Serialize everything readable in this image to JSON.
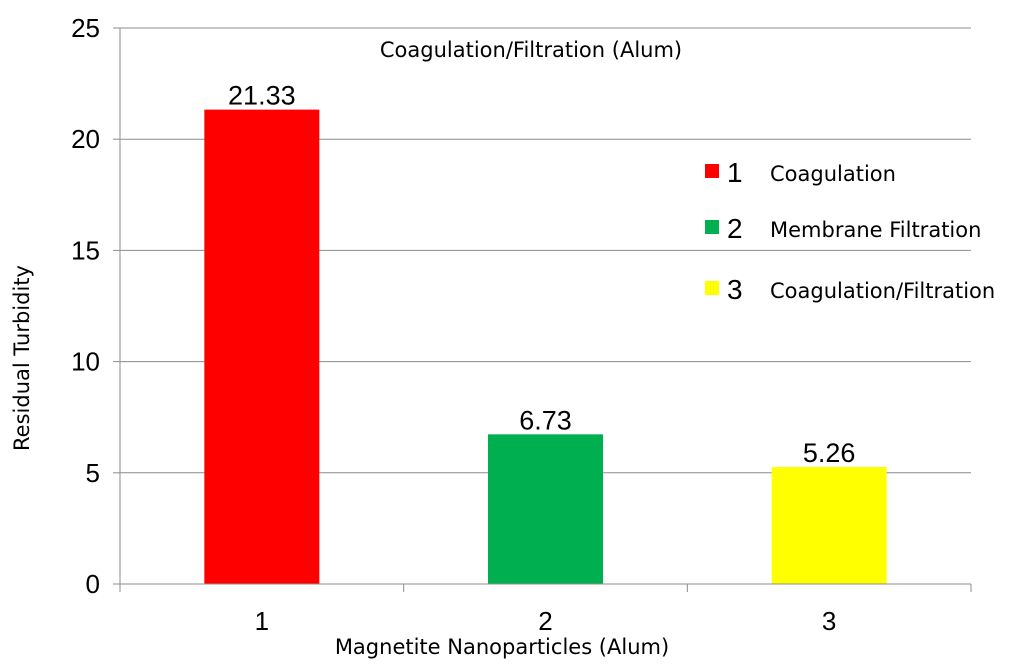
{
  "chart_data": {
    "type": "bar",
    "title": "Coagulation/Filtration (Alum)",
    "xlabel": "Magnetite Nanoparticles (Alum)",
    "ylabel": "Residual Turbidity",
    "categories": [
      "1",
      "2",
      "3"
    ],
    "values": [
      21.33,
      6.73,
      5.26
    ],
    "data_labels": [
      "21.33",
      "6.73",
      "5.26"
    ],
    "colors": [
      "#ff0000",
      "#00b050",
      "#ffff00"
    ],
    "ylim": [
      0,
      25
    ],
    "yticks": [
      0,
      5,
      10,
      15,
      20,
      25
    ],
    "ytick_labels": [
      "0",
      "5",
      "10",
      "15",
      "20",
      "25"
    ],
    "grid": true,
    "legend_position": "right",
    "legend": [
      {
        "number": "1",
        "label": "Coagulation",
        "color": "#ff0000"
      },
      {
        "number": "2",
        "label": "Membrane Filtration",
        "color": "#00b050"
      },
      {
        "number": "3",
        "label": "Coagulation/Filtration",
        "color": "#ffff00"
      }
    ]
  }
}
